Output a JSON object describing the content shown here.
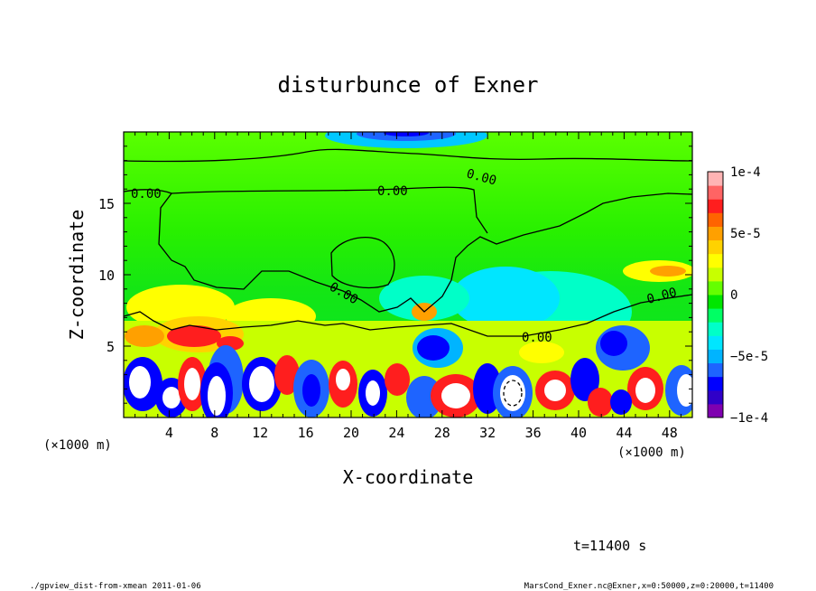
{
  "chart_data": {
    "type": "heatmap",
    "title": "disturbunce of Exner",
    "xlabel": "X-coordinate",
    "ylabel": "Z-coordinate",
    "x_unit_left": "(×1000 m)",
    "x_unit_right": "(×1000 m)",
    "x_ticks": [
      "4",
      "8",
      "12",
      "16",
      "20",
      "24",
      "28",
      "32",
      "36",
      "40",
      "44",
      "48"
    ],
    "x_tick_values": [
      4,
      8,
      12,
      16,
      20,
      24,
      28,
      32,
      36,
      40,
      44,
      48
    ],
    "y_ticks": [
      "5",
      "10",
      "15"
    ],
    "y_tick_values": [
      5,
      10,
      15
    ],
    "xlim": [
      0,
      50
    ],
    "ylim": [
      0,
      20
    ],
    "colorbar": {
      "labels": [
        "1e-4",
        "5e-5",
        "0",
        "−5e-5",
        "−1e-4"
      ],
      "values": [
        0.0001,
        5e-05,
        0,
        -5e-05,
        -0.0001
      ],
      "range": [
        -0.0001,
        0.0001
      ],
      "colors": [
        "#7f00b0",
        "#3000c8",
        "#0000ff",
        "#1e64ff",
        "#00b4ff",
        "#00e6ff",
        "#00ffc8",
        "#00ff64",
        "#00e600",
        "#64ff00",
        "#c8ff00",
        "#ffff00",
        "#ffd200",
        "#ffa000",
        "#ff6400",
        "#ff1e1e",
        "#ff6464",
        "#ffb4b4"
      ]
    },
    "contour_labels": [
      "0.00",
      "0.00",
      "0.00",
      "0.00",
      "0.00",
      "0.00"
    ],
    "time_label": "t=11400 s"
  },
  "footer": {
    "left": "./gpview_dist-from-xmean   2011-01-06",
    "right": "MarsCond_Exner.nc@Exner,x=0:50000,z=0:20000,t=11400"
  }
}
